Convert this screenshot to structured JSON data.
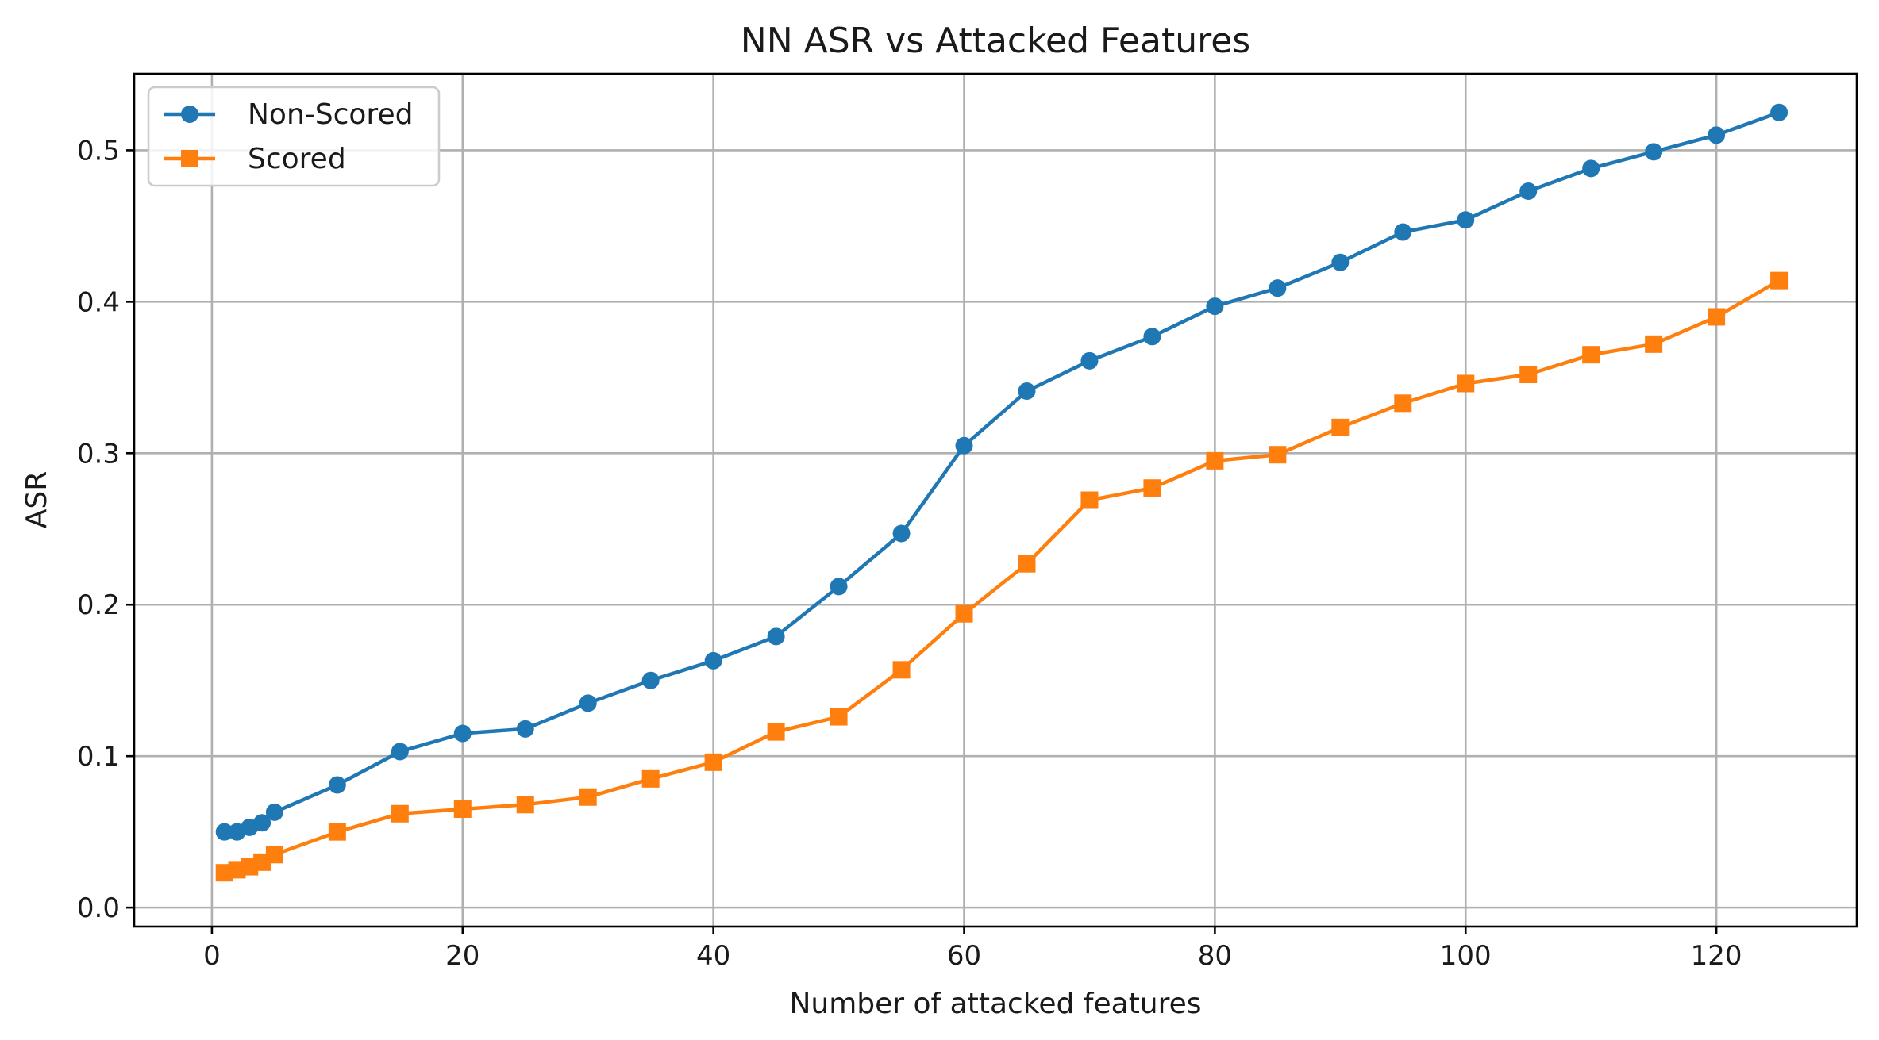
{
  "chart_data": {
    "type": "line",
    "title": "NN ASR vs Attacked Features",
    "xlabel": "Number of attacked features",
    "ylabel": "ASR",
    "xlim": [
      -6.2,
      131.2
    ],
    "ylim": [
      -0.0125,
      0.5505
    ],
    "xticks": [
      0,
      20,
      40,
      60,
      80,
      100,
      120
    ],
    "yticks": [
      0.0,
      0.1,
      0.2,
      0.3,
      0.4,
      0.5
    ],
    "xtick_labels": [
      "0",
      "20",
      "40",
      "60",
      "80",
      "100",
      "120"
    ],
    "ytick_labels": [
      "0.0",
      "0.1",
      "0.2",
      "0.3",
      "0.4",
      "0.5"
    ],
    "grid": true,
    "legend_position": "upper left",
    "x": [
      1,
      2,
      3,
      4,
      5,
      10,
      15,
      20,
      25,
      30,
      35,
      40,
      45,
      50,
      55,
      60,
      65,
      70,
      75,
      80,
      85,
      90,
      95,
      100,
      105,
      110,
      115,
      120,
      125
    ],
    "series": [
      {
        "name": "Non-Scored",
        "color": "#1f77b4",
        "marker": "circle",
        "values": [
          0.05,
          0.05,
          0.053,
          0.056,
          0.063,
          0.081,
          0.103,
          0.115,
          0.118,
          0.135,
          0.15,
          0.163,
          0.179,
          0.212,
          0.247,
          0.305,
          0.341,
          0.361,
          0.377,
          0.397,
          0.409,
          0.426,
          0.446,
          0.454,
          0.473,
          0.488,
          0.499,
          0.51,
          0.525
        ]
      },
      {
        "name": "Scored",
        "color": "#ff7f0e",
        "marker": "square",
        "values": [
          0.023,
          0.025,
          0.027,
          0.03,
          0.035,
          0.05,
          0.062,
          0.065,
          0.068,
          0.073,
          0.085,
          0.096,
          0.116,
          0.126,
          0.157,
          0.194,
          0.227,
          0.269,
          0.277,
          0.295,
          0.299,
          0.317,
          0.333,
          0.346,
          0.352,
          0.365,
          0.372,
          0.39,
          0.414
        ]
      }
    ]
  }
}
